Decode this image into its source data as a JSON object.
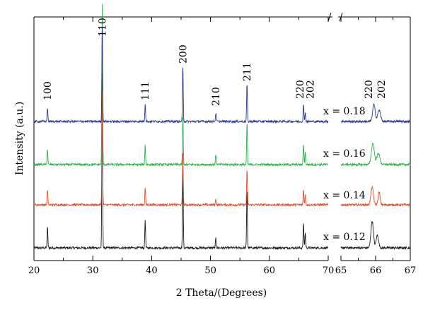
{
  "chart_data": {
    "type": "line",
    "xlabel": "2 Theta/(Degrees)",
    "ylabel": "Intensity (a.u.)",
    "panels": [
      {
        "xlim": [
          20,
          70
        ],
        "xticks": [
          20,
          30,
          40,
          50,
          60,
          70
        ]
      },
      {
        "xlim": [
          65,
          67
        ],
        "xticks": [
          65,
          66,
          67
        ]
      }
    ],
    "axis_break": "between 70 and 65 on the x-axis",
    "peak_labels_main": [
      {
        "text": "100",
        "x": 22.3
      },
      {
        "text": "110",
        "x": 31.6
      },
      {
        "text": "111",
        "x": 38.9
      },
      {
        "text": "200",
        "x": 45.3
      },
      {
        "text": "210",
        "x": 50.9
      },
      {
        "text": "211",
        "x": 56.2
      },
      {
        "text": "220",
        "x": 65.8
      },
      {
        "text": "202",
        "x": 66.1
      }
    ],
    "peak_labels_zoom": [
      {
        "text": "220",
        "x": 65.88
      },
      {
        "text": "202",
        "x": 66.1
      }
    ],
    "series": [
      {
        "name": "x = 0.12",
        "color": "#1a1a1a",
        "peaks": [
          {
            "x": 22.3,
            "h": 30
          },
          {
            "x": 31.6,
            "h": 255
          },
          {
            "x": 38.9,
            "h": 40
          },
          {
            "x": 45.3,
            "h": 120
          },
          {
            "x": 50.9,
            "h": 14
          },
          {
            "x": 56.2,
            "h": 85
          },
          {
            "x": 65.8,
            "h": 35
          },
          {
            "x": 66.1,
            "h": 22
          }
        ],
        "zoom": [
          {
            "x": 65.9,
            "h": 38,
            "w": 0.05
          },
          {
            "x": 66.05,
            "h": 18,
            "w": 0.05
          }
        ]
      },
      {
        "name": "x = 0.14",
        "color": "#e0502c",
        "peaks": [
          {
            "x": 22.3,
            "h": 22
          },
          {
            "x": 31.6,
            "h": 165
          },
          {
            "x": 38.9,
            "h": 25
          },
          {
            "x": 45.3,
            "h": 78
          },
          {
            "x": 50.9,
            "h": 8
          },
          {
            "x": 56.2,
            "h": 50
          },
          {
            "x": 65.8,
            "h": 22
          },
          {
            "x": 66.1,
            "h": 14
          }
        ],
        "zoom": [
          {
            "x": 65.9,
            "h": 25,
            "w": 0.05
          },
          {
            "x": 66.1,
            "h": 18,
            "w": 0.04
          }
        ]
      },
      {
        "name": "x = 0.16",
        "color": "#2eb04d",
        "peaks": [
          {
            "x": 22.3,
            "h": 22
          },
          {
            "x": 31.6,
            "h": 230
          },
          {
            "x": 38.9,
            "h": 28
          },
          {
            "x": 45.3,
            "h": 72
          },
          {
            "x": 50.9,
            "h": 15
          },
          {
            "x": 56.2,
            "h": 60
          },
          {
            "x": 65.8,
            "h": 30
          },
          {
            "x": 66.1,
            "h": 18
          }
        ],
        "zoom": [
          {
            "x": 65.92,
            "h": 30,
            "w": 0.06
          },
          {
            "x": 66.08,
            "h": 16,
            "w": 0.06
          }
        ]
      },
      {
        "name": "x = 0.18",
        "color": "#2a3a8c",
        "peaks": [
          {
            "x": 22.3,
            "h": 20
          },
          {
            "x": 31.6,
            "h": 135
          },
          {
            "x": 38.9,
            "h": 26
          },
          {
            "x": 45.3,
            "h": 80
          },
          {
            "x": 50.9,
            "h": 12
          },
          {
            "x": 56.2,
            "h": 55
          },
          {
            "x": 65.8,
            "h": 24
          },
          {
            "x": 66.1,
            "h": 14
          }
        ],
        "zoom": [
          {
            "x": 65.95,
            "h": 24,
            "w": 0.05
          },
          {
            "x": 66.1,
            "h": 16,
            "w": 0.06
          }
        ]
      }
    ]
  }
}
